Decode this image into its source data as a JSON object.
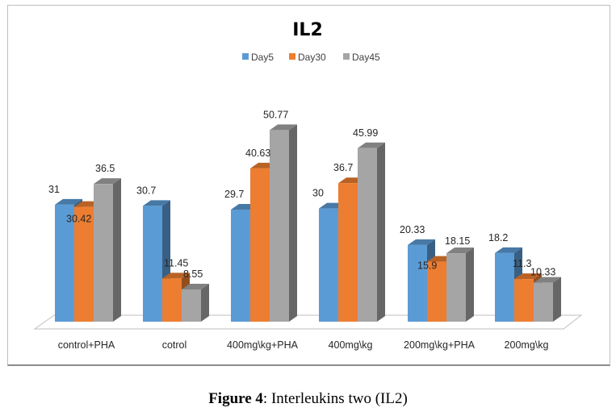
{
  "chart_data": {
    "type": "bar",
    "style": "3d-clustered-column",
    "title": "IL2",
    "xlabel": "",
    "ylabel": "",
    "legend_position": "top",
    "grid": false,
    "ylim": [
      0,
      55
    ],
    "categories": [
      "control+PHA",
      "cotrol",
      "400mg\\kg+PHA",
      "400mg\\kg",
      "200mg\\kg+PHA",
      "200mg\\kg"
    ],
    "series": [
      {
        "name": "Day5",
        "color": "#5b9bd5",
        "values": [
          31,
          30.7,
          29.7,
          30,
          20.33,
          18.2
        ],
        "labels": [
          "31",
          "30.7",
          "29.7",
          "30",
          "20.33",
          "18.2"
        ]
      },
      {
        "name": "Day30",
        "color": "#ed7d31",
        "values": [
          30.42,
          11.45,
          40.63,
          36.7,
          15.9,
          11.3
        ],
        "labels": [
          "30.42",
          "11.45",
          "40.63",
          "36.7",
          "15.9",
          "11.3"
        ]
      },
      {
        "name": "Day45",
        "color": "#a5a5a5",
        "values": [
          36.5,
          8.55,
          50.77,
          45.99,
          18.15,
          10.33
        ],
        "labels": [
          "36.5",
          "8.55",
          "50.77",
          "45.99",
          "18.15",
          "10.33"
        ]
      }
    ]
  },
  "caption": {
    "label": "Figure 4",
    "text": ": Interleukins two (IL2)"
  }
}
